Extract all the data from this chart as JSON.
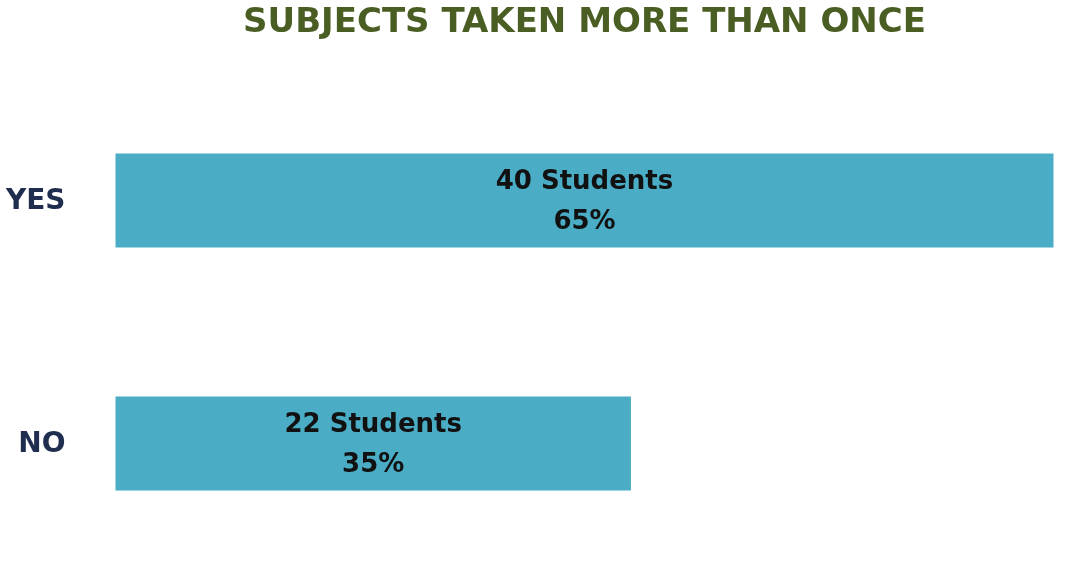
{
  "chart_data": {
    "type": "bar",
    "orientation": "horizontal",
    "title": "SUBJECTS TAKEN MORE THAN ONCE",
    "categories": [
      "YES",
      "NO"
    ],
    "values": [
      40,
      22
    ],
    "value_labels": [
      "40 Students\n65%",
      "22 Students\n35%"
    ],
    "color": "#4bacc6"
  }
}
